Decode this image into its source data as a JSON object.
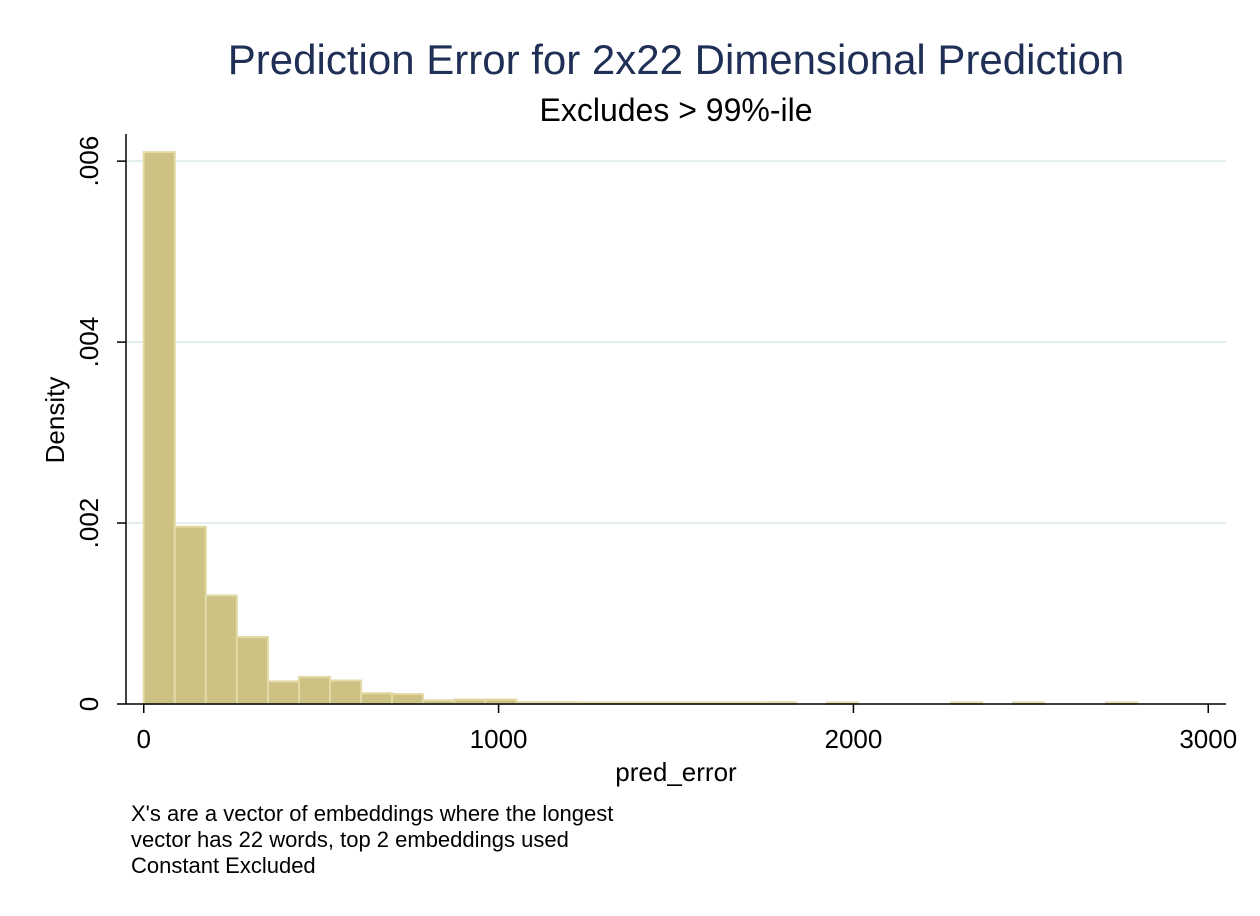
{
  "chart_data": {
    "type": "bar",
    "title": "Prediction Error for 2x22 Dimensional Prediction",
    "subtitle": "Excludes > 99%-ile",
    "xlabel": "pred_error",
    "ylabel": "Density",
    "xlim": [
      -50,
      3050
    ],
    "ylim": [
      0,
      0.0063
    ],
    "x_ticks": [
      {
        "value": 0,
        "label": "0"
      },
      {
        "value": 1000,
        "label": "1000"
      },
      {
        "value": 2000,
        "label": "2000"
      },
      {
        "value": 3000,
        "label": "3000"
      }
    ],
    "y_ticks": [
      {
        "value": 0,
        "label": "0"
      },
      {
        "value": 0.002,
        "label": ".002"
      },
      {
        "value": 0.004,
        "label": ".004"
      },
      {
        "value": 0.006,
        "label": ".006"
      }
    ],
    "grid": true,
    "legend": "none",
    "bar_color": "#cdc283",
    "bar_edge_color": "#e2dba6",
    "notes": [
      "X's are a vector of embeddings where the longest",
      "vector has 22 words, top 2 embeddings used",
      "Constant Excluded"
    ],
    "bin_width": 87.5,
    "bins": [
      {
        "start": 0,
        "density": 0.0061
      },
      {
        "start": 87.5,
        "density": 0.00196
      },
      {
        "start": 175,
        "density": 0.0012
      },
      {
        "start": 262.5,
        "density": 0.00074
      },
      {
        "start": 350,
        "density": 0.00025
      },
      {
        "start": 437.5,
        "density": 0.0003
      },
      {
        "start": 525,
        "density": 0.00026
      },
      {
        "start": 612.5,
        "density": 0.00012
      },
      {
        "start": 700,
        "density": 0.00011
      },
      {
        "start": 787.5,
        "density": 4e-05
      },
      {
        "start": 875,
        "density": 5e-05
      },
      {
        "start": 962.5,
        "density": 5e-05
      },
      {
        "start": 1050,
        "density": 2e-05
      },
      {
        "start": 1137.5,
        "density": 2e-05
      },
      {
        "start": 1225,
        "density": 1.5e-05
      },
      {
        "start": 1312.5,
        "density": 1.5e-05
      },
      {
        "start": 1400,
        "density": 1.5e-05
      },
      {
        "start": 1487.5,
        "density": 1.5e-05
      },
      {
        "start": 1575,
        "density": 1.2e-05
      },
      {
        "start": 1662.5,
        "density": 1.2e-05
      },
      {
        "start": 1750,
        "density": 2e-05
      },
      {
        "start": 1925,
        "density": 1.2e-05
      },
      {
        "start": 2275,
        "density": 1.2e-05
      },
      {
        "start": 2450,
        "density": 1.2e-05
      },
      {
        "start": 2712.5,
        "density": 1.2e-05
      }
    ]
  }
}
